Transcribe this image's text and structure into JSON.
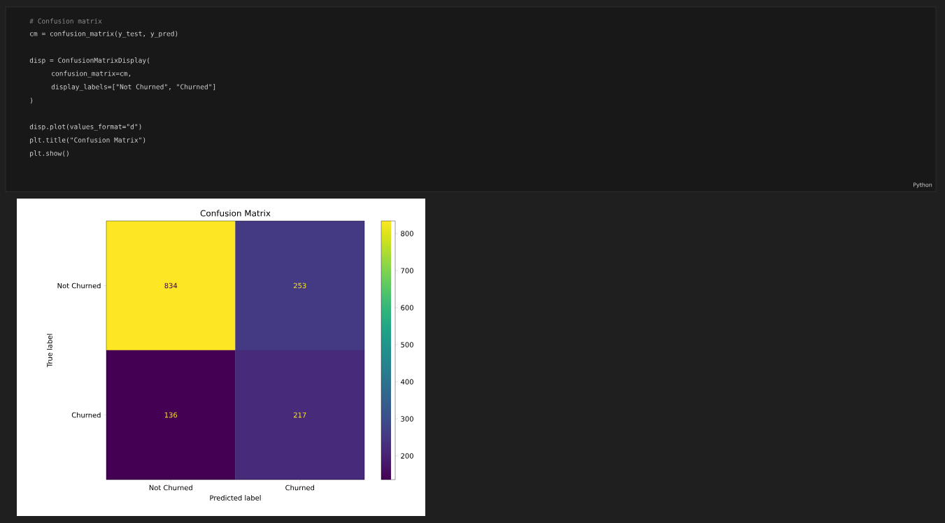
{
  "chart_data": {
    "type": "heatmap",
    "title": "Confusion Matrix",
    "xlabel": "Predicted label",
    "ylabel": "True label",
    "categories": [
      "Not Churned",
      "Churned"
    ],
    "y_categories": [
      "Not Churned",
      "Churned"
    ],
    "cells": [
      [
        834,
        253
      ],
      [
        136,
        217
      ]
    ],
    "data_labels": true,
    "clim": [
      136,
      834
    ],
    "cticks": [
      200,
      300,
      400,
      500,
      600,
      700,
      800
    ],
    "annotations": [
      "# Confusion matrix",
      "cm = confusion_matrix(y_test, y_pred)",
      "disp = ConfusionMatrixDisplay(",
      "confusion_matrix=cm,",
      "display_labels=[\"Not Churned\", \"Churned\"]",
      ")",
      "disp.plot(values_format=\"d\")",
      "plt.title(\"Confusion Matrix\")",
      "plt.show()",
      "Python"
    ]
  }
}
